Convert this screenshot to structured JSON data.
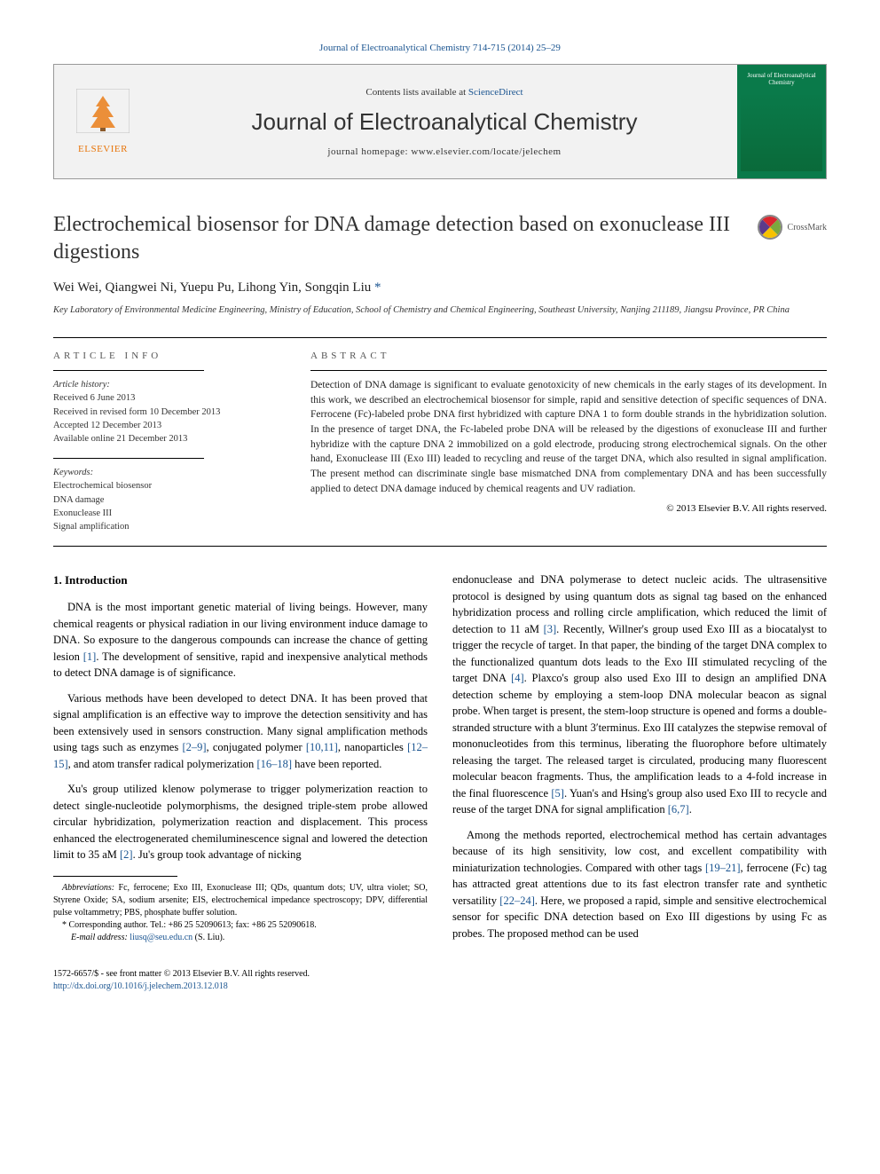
{
  "top_link": "Journal of Electroanalytical Chemistry 714-715 (2014) 25–29",
  "header": {
    "elsevier": "ELSEVIER",
    "contents_prefix": "Contents lists available at ",
    "contents_link": "ScienceDirect",
    "journal_name": "Journal of Electroanalytical Chemistry",
    "homepage_label": "journal homepage: ",
    "homepage_url": "www.elsevier.com/locate/jelechem",
    "cover_title": "Journal of\nElectroanalytical\nChemistry"
  },
  "crossmark": "CrossMark",
  "article": {
    "title": "Electrochemical biosensor for DNA damage detection based on exonuclease III digestions",
    "authors": "Wei Wei, Qiangwei Ni, Yuepu Pu, Lihong Yin, Songqin Liu ",
    "corr_mark": "*",
    "affiliation": "Key Laboratory of Environmental Medicine Engineering, Ministry of Education, School of Chemistry and Chemical Engineering, Southeast University, Nanjing 211189, Jiangsu Province, PR China"
  },
  "info": {
    "label": "article info",
    "history_label": "Article history:",
    "received": "Received 6 June 2013",
    "revised": "Received in revised form 10 December 2013",
    "accepted": "Accepted 12 December 2013",
    "online": "Available online 21 December 2013",
    "keywords_label": "Keywords:",
    "kw1": "Electrochemical biosensor",
    "kw2": "DNA damage",
    "kw3": "Exonuclease III",
    "kw4": "Signal amplification"
  },
  "abstract": {
    "label": "abstract",
    "text": "Detection of DNA damage is significant to evaluate genotoxicity of new chemicals in the early stages of its development. In this work, we described an electrochemical biosensor for simple, rapid and sensitive detection of specific sequences of DNA. Ferrocene (Fc)-labeled probe DNA first hybridized with capture DNA 1 to form double strands in the hybridization solution. In the presence of target DNA, the Fc-labeled probe DNA will be released by the digestions of exonuclease III and further hybridize with the capture DNA 2 immobilized on a gold electrode, producing strong electrochemical signals. On the other hand, Exonuclease III (Exo III) leaded to recycling and reuse of the target DNA, which also resulted in signal amplification. The present method can discriminate single base mismatched DNA from complementary DNA and has been successfully applied to detect DNA damage induced by chemical reagents and UV radiation.",
    "copyright": "© 2013 Elsevier B.V. All rights reserved."
  },
  "body": {
    "intro_heading": "1. Introduction",
    "left_p1": "DNA is the most important genetic material of living beings. However, many chemical reagents or physical radiation in our living environment induce damage to DNA. So exposure to the dangerous compounds can increase the chance of getting lesion [1]. The development of sensitive, rapid and inexpensive analytical methods to detect DNA damage is of significance.",
    "left_p2": "Various methods have been developed to detect DNA. It has been proved that signal amplification is an effective way to improve the detection sensitivity and has been extensively used in sensors construction. Many signal amplification methods using tags such as enzymes [2–9], conjugated polymer [10,11], nanoparticles [12–15], and atom transfer radical polymerization [16–18] have been reported.",
    "left_p3": "Xu's group utilized klenow polymerase to trigger polymerization reaction to detect single-nucleotide polymorphisms, the designed triple-stem probe allowed circular hybridization, polymerization reaction and displacement. This process enhanced the electrogenerated chemiluminescence signal and lowered the detection limit to 35 aM [2]. Ju's group took advantage of nicking",
    "right_p1": "endonuclease and DNA polymerase to detect nucleic acids. The ultrasensitive protocol is designed by using quantum dots as signal tag based on the enhanced hybridization process and rolling circle amplification, which reduced the limit of detection to 11 aM [3]. Recently, Willner's group used Exo III as a biocatalyst to trigger the recycle of target. In that paper, the binding of the target DNA complex to the functionalized quantum dots leads to the Exo III stimulated recycling of the target DNA [4]. Plaxco's group also used Exo III to design an amplified DNA detection scheme by employing a stem-loop DNA molecular beacon as signal probe. When target is present, the stem-loop structure is opened and forms a double-stranded structure with a blunt 3′terminus. Exo III catalyzes the stepwise removal of mononucleotides from this terminus, liberating the fluorophore before ultimately releasing the target. The released target is circulated, producing many fluorescent molecular beacon fragments. Thus, the amplification leads to a 4-fold increase in the final fluorescence [5]. Yuan's and Hsing's group also used Exo III to recycle and reuse of the target DNA for signal amplification [6,7].",
    "right_p2": "Among the methods reported, electrochemical method has certain advantages because of its high sensitivity, low cost, and excellent compatibility with miniaturization technologies. Compared with other tags [19–21], ferrocene (Fc) tag has attracted great attentions due to its fast electron transfer rate and synthetic versatility [22–24]. Here, we proposed a rapid, simple and sensitive electrochemical sensor for specific DNA detection based on Exo III digestions by using Fc as probes. The proposed method can be used"
  },
  "footnotes": {
    "abbrev_label": "Abbreviations:",
    "abbrev_text": " Fc, ferrocene; Exo III, Exonuclease III; QDs, quantum dots; UV, ultra violet; SO, Styrene Oxide; SA, sodium arsenite; EIS, electrochemical impedance spectroscopy; DPV, differential pulse voltammetry; PBS, phosphate buffer solution.",
    "corr_label": "* Corresponding author. Tel.: +86 25 52090613; fax: +86 25 52090618.",
    "email_label": "E-mail address: ",
    "email": "liusq@seu.edu.cn",
    "email_suffix": " (S. Liu)."
  },
  "bottom": {
    "issn": "1572-6657/$ - see front matter © 2013 Elsevier B.V. All rights reserved.",
    "doi": "http://dx.doi.org/10.1016/j.jelechem.2013.12.018"
  },
  "refs": {
    "r1": "[1]",
    "r2_9": "[2–9]",
    "r10_11": "[10,11]",
    "r12_15": "[12–15]",
    "r16_18": "[16–18]",
    "r2": "[2]",
    "r3": "[3]",
    "r4": "[4]",
    "r5": "[5]",
    "r6_7": "[6,7]",
    "r19_21": "[19–21]",
    "r22_24": "[22–24]"
  },
  "colors": {
    "link": "#1a5490",
    "elsevier_orange": "#e8750a",
    "cover_green": "#0a7a4a",
    "text": "#222222"
  }
}
